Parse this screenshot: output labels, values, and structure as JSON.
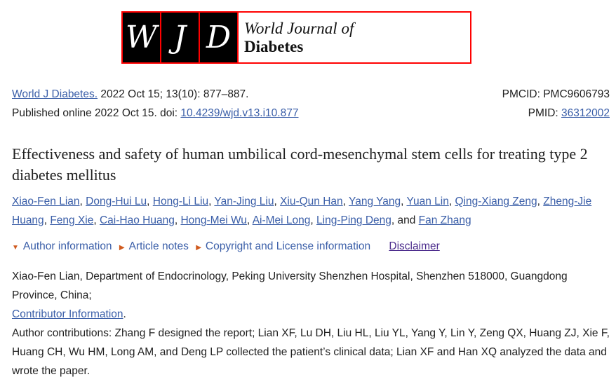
{
  "logo": {
    "letters": [
      "W",
      "J",
      "D"
    ],
    "line1": "World Journal of",
    "line2": "Diabetes"
  },
  "citation": {
    "journal_link": "World J Diabetes.",
    "details": " 2022 Oct 15; 13(10): 877–887.",
    "pmcid_label": "PMCID: PMC9606793",
    "published": "Published online 2022 Oct 15. doi: ",
    "doi": "10.4239/wjd.v13.i10.877",
    "pmid_label": "PMID: ",
    "pmid": "36312002"
  },
  "title": "Effectiveness and safety of human umbilical cord-mesenchymal stem cells for treating type 2 diabetes mellitus",
  "authors": [
    "Xiao-Fen Lian",
    "Dong-Hui Lu",
    "Hong-Li Liu",
    "Yan-Jing Liu",
    "Xiu-Qun Han",
    "Yang Yang",
    "Yuan Lin",
    "Qing-Xiang Zeng",
    "Zheng-Jie Huang",
    "Feng Xie",
    "Cai-Hao Huang",
    "Hong-Mei Wu",
    "Ai-Mei Long",
    "Ling-Ping Deng",
    "Fan Zhang"
  ],
  "authors_and": ", and ",
  "nav": {
    "author_info": "Author information",
    "article_notes": "Article notes",
    "copyright": "Copyright and License information",
    "disclaimer": "Disclaimer"
  },
  "info": {
    "affiliation": "Xiao-Fen Lian, Department of Endocrinology, Peking University Shenzhen Hospital, Shenzhen 518000, Guangdong Province, China;",
    "contributor_link": "Contributor Information",
    "contributor_dot": ".",
    "contributions": "Author contributions: Zhang F designed the report; Lian XF, Lu DH, Liu HL, Liu YL, Yang Y, Lin Y, Zeng QX, Huang ZJ, Xie F, Huang CH, Wu HM, Long AM, and Deng LP collected the patient’s clinical data; Lian XF and Han XQ analyzed the data and wrote the paper."
  },
  "colors": {
    "link": "#3a5ea8",
    "logo_border": "#ff0000",
    "triangle": "#d05a1e"
  }
}
